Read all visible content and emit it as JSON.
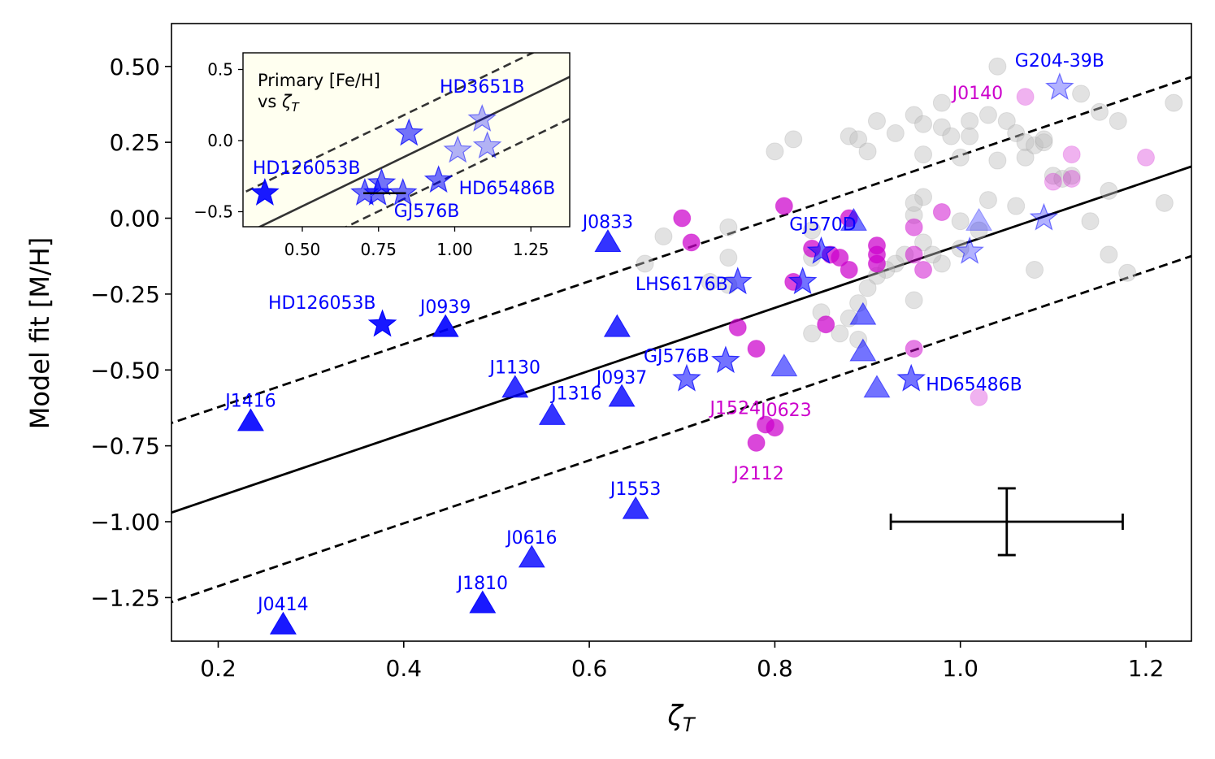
{
  "chart_data": {
    "type": "scatter",
    "xlabel": "ζ_T",
    "ylabel": "Model fit [M/H]",
    "xlim": [
      0.15,
      1.25
    ],
    "ylim": [
      -1.4,
      0.65
    ],
    "xticks": [
      0.2,
      0.4,
      0.6,
      0.8,
      1.0,
      1.2
    ],
    "xtick_labels": [
      "0.2",
      "0.4",
      "0.6",
      "0.8",
      "1.0",
      "1.2"
    ],
    "yticks": [
      0.5,
      0.25,
      0.0,
      -0.25,
      -0.5,
      -0.75,
      -1.0,
      -1.25
    ],
    "ytick_labels": [
      "0.50",
      "0.25",
      "0.00",
      "−0.25",
      "−0.50",
      "−0.75",
      "−1.00",
      "−1.25"
    ],
    "colors": {
      "blue": "#0000ff",
      "magenta": "#cc00cc",
      "gray": "#bfbfbf",
      "inset_bg": "#fffff0",
      "line": "#000000"
    },
    "fit_line": {
      "slope": 1.037,
      "intercept": -1.125,
      "offset": 0.295
    },
    "error_bar": {
      "x": 1.05,
      "y": -1.0,
      "xerr": 0.125,
      "yerr": 0.11
    },
    "series": [
      {
        "name": "background",
        "marker": "circle",
        "color": "#bfbfbf",
        "points": [
          [
            0.66,
            -0.15
          ],
          [
            0.68,
            -0.06
          ],
          [
            0.75,
            -0.03
          ],
          [
            0.75,
            -0.13
          ],
          [
            0.75,
            -0.22
          ],
          [
            0.73,
            -0.21
          ],
          [
            0.82,
            0.26
          ],
          [
            0.8,
            0.22
          ],
          [
            0.84,
            -0.04
          ],
          [
            0.84,
            -0.13
          ],
          [
            0.85,
            -0.31
          ],
          [
            0.84,
            -0.38
          ],
          [
            0.88,
            0.27
          ],
          [
            0.89,
            0.26
          ],
          [
            0.9,
            0.22
          ],
          [
            0.91,
            0.32
          ],
          [
            0.93,
            0.28
          ],
          [
            0.95,
            0.34
          ],
          [
            0.96,
            0.31
          ],
          [
            0.96,
            0.21
          ],
          [
            0.98,
            0.3
          ],
          [
            0.98,
            0.38
          ],
          [
            0.99,
            0.27
          ],
          [
            1.0,
            0.2
          ],
          [
            1.01,
            0.32
          ],
          [
            1.01,
            0.27
          ],
          [
            1.03,
            0.34
          ],
          [
            1.05,
            0.32
          ],
          [
            1.04,
            0.19
          ],
          [
            1.06,
            0.28
          ],
          [
            1.07,
            0.25
          ],
          [
            1.07,
            0.2
          ],
          [
            1.08,
            0.24
          ],
          [
            1.09,
            0.25
          ],
          [
            1.09,
            0.26
          ],
          [
            1.1,
            0.14
          ],
          [
            1.13,
            0.41
          ],
          [
            1.15,
            0.35
          ],
          [
            1.17,
            0.32
          ],
          [
            1.23,
            0.38
          ],
          [
            1.22,
            0.05
          ],
          [
            1.16,
            0.09
          ],
          [
            1.14,
            -0.01
          ],
          [
            1.16,
            -0.12
          ],
          [
            1.18,
            -0.18
          ],
          [
            1.08,
            -0.17
          ],
          [
            1.06,
            0.04
          ],
          [
            1.03,
            0.06
          ],
          [
            1.02,
            -0.04
          ],
          [
            1.0,
            -0.1
          ],
          [
            0.98,
            -0.15
          ],
          [
            0.96,
            -0.08
          ],
          [
            0.95,
            0.01
          ],
          [
            0.96,
            0.07
          ],
          [
            0.95,
            0.05
          ],
          [
            0.97,
            -0.12
          ],
          [
            0.94,
            -0.12
          ],
          [
            0.93,
            -0.15
          ],
          [
            0.92,
            -0.17
          ],
          [
            0.91,
            -0.19
          ],
          [
            0.9,
            -0.23
          ],
          [
            0.89,
            -0.28
          ],
          [
            0.88,
            -0.33
          ],
          [
            0.87,
            -0.38
          ],
          [
            0.89,
            -0.4
          ],
          [
            0.95,
            -0.27
          ],
          [
            1.04,
            0.5
          ],
          [
            1.12,
            0.14
          ],
          [
            1.11,
            0.13
          ],
          [
            1.0,
            -0.01
          ]
        ]
      },
      {
        "name": "magenta",
        "marker": "circle",
        "color": "#cc00cc",
        "points": [
          [
            0.7,
            0.0
          ],
          [
            0.71,
            -0.08
          ],
          [
            0.76,
            -0.36
          ],
          [
            0.78,
            -0.43
          ],
          [
            0.81,
            0.04
          ],
          [
            0.82,
            -0.21
          ],
          [
            0.84,
            -0.1
          ],
          [
            0.86,
            -0.12
          ],
          [
            0.87,
            -0.13
          ],
          [
            0.88,
            -0.17
          ],
          [
            0.88,
            0.0
          ],
          [
            0.91,
            -0.09
          ],
          [
            0.91,
            -0.12
          ],
          [
            0.91,
            -0.15
          ],
          [
            0.95,
            -0.03
          ],
          [
            0.95,
            -0.12
          ],
          [
            0.96,
            -0.17
          ],
          [
            0.95,
            -0.43
          ],
          [
            0.98,
            0.02
          ],
          [
            0.78,
            -0.74
          ],
          [
            0.79,
            -0.68
          ],
          [
            0.8,
            -0.69
          ],
          [
            0.855,
            -0.35
          ],
          [
            1.02,
            -0.59
          ],
          [
            1.07,
            0.4
          ],
          [
            1.12,
            0.21
          ],
          [
            1.12,
            0.13
          ],
          [
            1.2,
            0.2
          ],
          [
            1.1,
            0.12
          ]
        ]
      },
      {
        "name": "triangles",
        "marker": "triangle",
        "color": "#0000ff",
        "points": [
          [
            0.235,
            -0.67
          ],
          [
            0.27,
            -1.34
          ],
          [
            0.445,
            -0.36
          ],
          [
            0.485,
            -1.27
          ],
          [
            0.52,
            -0.56
          ],
          [
            0.538,
            -1.12
          ],
          [
            0.56,
            -0.65
          ],
          [
            0.62,
            -0.08
          ],
          [
            0.63,
            -0.36
          ],
          [
            0.635,
            -0.59
          ],
          [
            0.65,
            -0.96
          ],
          [
            0.81,
            -0.49
          ],
          [
            0.885,
            -0.01
          ],
          [
            0.895,
            -0.32
          ],
          [
            0.895,
            -0.44
          ],
          [
            0.91,
            -0.56
          ],
          [
            1.02,
            -0.01
          ]
        ]
      },
      {
        "name": "stars",
        "marker": "star",
        "color": "#0000ff",
        "points": [
          [
            0.377,
            -0.35
          ],
          [
            0.705,
            -0.53
          ],
          [
            0.747,
            -0.47
          ],
          [
            0.76,
            -0.21
          ],
          [
            0.83,
            -0.21
          ],
          [
            0.85,
            -0.11
          ],
          [
            0.947,
            -0.53
          ],
          [
            1.01,
            -0.11
          ],
          [
            1.09,
            0.0
          ],
          [
            1.107,
            0.43
          ]
        ]
      }
    ],
    "annotations": [
      {
        "text": "J1416",
        "x": 0.235,
        "y": -0.67,
        "color": "#0000ff"
      },
      {
        "text": "J0414",
        "x": 0.27,
        "y": -1.34,
        "color": "#0000ff"
      },
      {
        "text": "HD126053B",
        "x": 0.377,
        "y": -0.35,
        "color": "#0000ff"
      },
      {
        "text": "J0939",
        "x": 0.445,
        "y": -0.36,
        "color": "#0000ff"
      },
      {
        "text": "J1810",
        "x": 0.485,
        "y": -1.27,
        "color": "#0000ff"
      },
      {
        "text": "J1130",
        "x": 0.52,
        "y": -0.56,
        "color": "#0000ff"
      },
      {
        "text": "J0616",
        "x": 0.538,
        "y": -1.12,
        "color": "#0000ff"
      },
      {
        "text": "J1316",
        "x": 0.56,
        "y": -0.65,
        "color": "#0000ff"
      },
      {
        "text": "J0833",
        "x": 0.62,
        "y": -0.08,
        "color": "#0000ff"
      },
      {
        "text": "J0937",
        "x": 0.635,
        "y": -0.59,
        "color": "#0000ff"
      },
      {
        "text": "J1553",
        "x": 0.65,
        "y": -0.96,
        "color": "#0000ff"
      },
      {
        "text": "GJ576B",
        "x": 0.705,
        "y": -0.53,
        "color": "#0000ff"
      },
      {
        "text": "LHS6176B",
        "x": 0.76,
        "y": -0.21,
        "color": "#0000ff"
      },
      {
        "text": "GJ570D",
        "x": 0.85,
        "y": -0.11,
        "color": "#0000ff"
      },
      {
        "text": "HD65486B",
        "x": 0.947,
        "y": -0.53,
        "color": "#0000ff"
      },
      {
        "text": "G204-39B",
        "x": 1.107,
        "y": 0.43,
        "color": "#0000ff"
      },
      {
        "text": "J0140",
        "x": 1.07,
        "y": 0.4,
        "color": "#cc00cc"
      },
      {
        "text": "J1524",
        "x": 0.79,
        "y": -0.68,
        "color": "#cc00cc"
      },
      {
        "text": "J0623",
        "x": 0.8,
        "y": -0.69,
        "color": "#cc00cc"
      },
      {
        "text": "J2112",
        "x": 0.78,
        "y": -0.74,
        "color": "#cc00cc"
      }
    ],
    "inset": {
      "title_line1": "Primary [Fe/H]",
      "title_line2": "vs ζ_T",
      "xlim": [
        0.3,
        1.4
      ],
      "ylim": [
        -0.6,
        0.6
      ],
      "xticks": [
        0.5,
        0.75,
        1.0,
        1.25
      ],
      "xtick_labels": [
        "0.50",
        "0.75",
        "1.00",
        "1.25"
      ],
      "yticks": [
        0.5,
        0.0,
        -0.5
      ],
      "ytick_labels": [
        "0.5",
        "0.0",
        "−0.5"
      ],
      "fit_line": {
        "slope": 1.037,
        "intercept": -0.98,
        "offset": 0.295
      },
      "stars": [
        [
          0.377,
          -0.37
        ],
        [
          0.705,
          -0.37
        ],
        [
          0.747,
          -0.37
        ],
        [
          0.76,
          -0.3
        ],
        [
          0.83,
          -0.37
        ],
        [
          0.85,
          0.05
        ],
        [
          0.947,
          -0.28
        ],
        [
          1.01,
          -0.07
        ],
        [
          1.09,
          0.15
        ],
        [
          1.107,
          -0.04
        ]
      ],
      "errbar": {
        "x1": 0.7,
        "x2": 0.84,
        "y": -0.37
      },
      "annotations": [
        {
          "text": "HD3651B",
          "x": 1.09,
          "y": 0.15
        },
        {
          "text": "HD126053B",
          "x": 0.377,
          "y": -0.37
        },
        {
          "text": "HD65486B",
          "x": 0.947,
          "y": -0.28
        },
        {
          "text": "GJ576B",
          "x": 0.83,
          "y": -0.37
        }
      ]
    }
  }
}
